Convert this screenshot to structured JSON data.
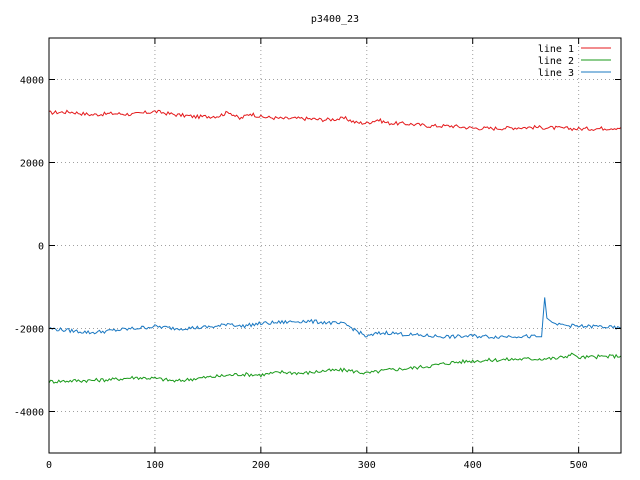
{
  "chart_data": {
    "type": "line",
    "title": "p3400_23",
    "xlabel": "",
    "ylabel": "",
    "xlim": [
      0,
      540
    ],
    "ylim": [
      -5000,
      5000
    ],
    "x_ticks": [
      0,
      100,
      200,
      300,
      400,
      500
    ],
    "y_ticks": [
      -4000,
      -2000,
      0,
      2000,
      4000
    ],
    "grid": true,
    "legend_position": "top-right",
    "series": [
      {
        "name": "line 1",
        "color": "#e41a1c",
        "points": [
          [
            0,
            3200
          ],
          [
            20,
            3220
          ],
          [
            40,
            3150
          ],
          [
            60,
            3180
          ],
          [
            80,
            3160
          ],
          [
            100,
            3230
          ],
          [
            120,
            3150
          ],
          [
            140,
            3100
          ],
          [
            160,
            3120
          ],
          [
            170,
            3220
          ],
          [
            180,
            3050
          ],
          [
            190,
            3180
          ],
          [
            200,
            3100
          ],
          [
            220,
            3060
          ],
          [
            240,
            3060
          ],
          [
            260,
            3030
          ],
          [
            280,
            3060
          ],
          [
            290,
            2960
          ],
          [
            300,
            2950
          ],
          [
            310,
            3030
          ],
          [
            320,
            2950
          ],
          [
            340,
            2930
          ],
          [
            360,
            2880
          ],
          [
            380,
            2880
          ],
          [
            400,
            2830
          ],
          [
            420,
            2820
          ],
          [
            440,
            2840
          ],
          [
            460,
            2850
          ],
          [
            480,
            2830
          ],
          [
            500,
            2810
          ],
          [
            520,
            2820
          ],
          [
            540,
            2840
          ]
        ]
      },
      {
        "name": "line 2",
        "color": "#1a9a1a",
        "points": [
          [
            0,
            -3280
          ],
          [
            20,
            -3260
          ],
          [
            40,
            -3250
          ],
          [
            60,
            -3230
          ],
          [
            80,
            -3180
          ],
          [
            100,
            -3200
          ],
          [
            120,
            -3270
          ],
          [
            140,
            -3200
          ],
          [
            160,
            -3150
          ],
          [
            180,
            -3100
          ],
          [
            200,
            -3120
          ],
          [
            220,
            -3050
          ],
          [
            240,
            -3080
          ],
          [
            260,
            -3020
          ],
          [
            280,
            -3000
          ],
          [
            300,
            -3080
          ],
          [
            320,
            -3000
          ],
          [
            340,
            -2960
          ],
          [
            360,
            -2900
          ],
          [
            380,
            -2820
          ],
          [
            400,
            -2780
          ],
          [
            420,
            -2760
          ],
          [
            440,
            -2740
          ],
          [
            460,
            -2730
          ],
          [
            480,
            -2720
          ],
          [
            495,
            -2620
          ],
          [
            500,
            -2700
          ],
          [
            520,
            -2680
          ],
          [
            540,
            -2660
          ]
        ]
      },
      {
        "name": "line 3",
        "color": "#1a78c2",
        "points": [
          [
            0,
            -2000
          ],
          [
            20,
            -2050
          ],
          [
            40,
            -2100
          ],
          [
            60,
            -2050
          ],
          [
            80,
            -2000
          ],
          [
            100,
            -1950
          ],
          [
            120,
            -2000
          ],
          [
            140,
            -1980
          ],
          [
            160,
            -1950
          ],
          [
            170,
            -1870
          ],
          [
            180,
            -1950
          ],
          [
            200,
            -1880
          ],
          [
            220,
            -1850
          ],
          [
            240,
            -1820
          ],
          [
            260,
            -1850
          ],
          [
            280,
            -1900
          ],
          [
            290,
            -2050
          ],
          [
            300,
            -2200
          ],
          [
            310,
            -2120
          ],
          [
            320,
            -2100
          ],
          [
            340,
            -2150
          ],
          [
            360,
            -2180
          ],
          [
            380,
            -2200
          ],
          [
            400,
            -2180
          ],
          [
            420,
            -2200
          ],
          [
            440,
            -2180
          ],
          [
            460,
            -2200
          ],
          [
            465,
            -2200
          ],
          [
            468,
            -1250
          ],
          [
            470,
            -1750
          ],
          [
            475,
            -1850
          ],
          [
            480,
            -1900
          ],
          [
            500,
            -1950
          ],
          [
            520,
            -1950
          ],
          [
            540,
            -2000
          ]
        ]
      }
    ]
  }
}
